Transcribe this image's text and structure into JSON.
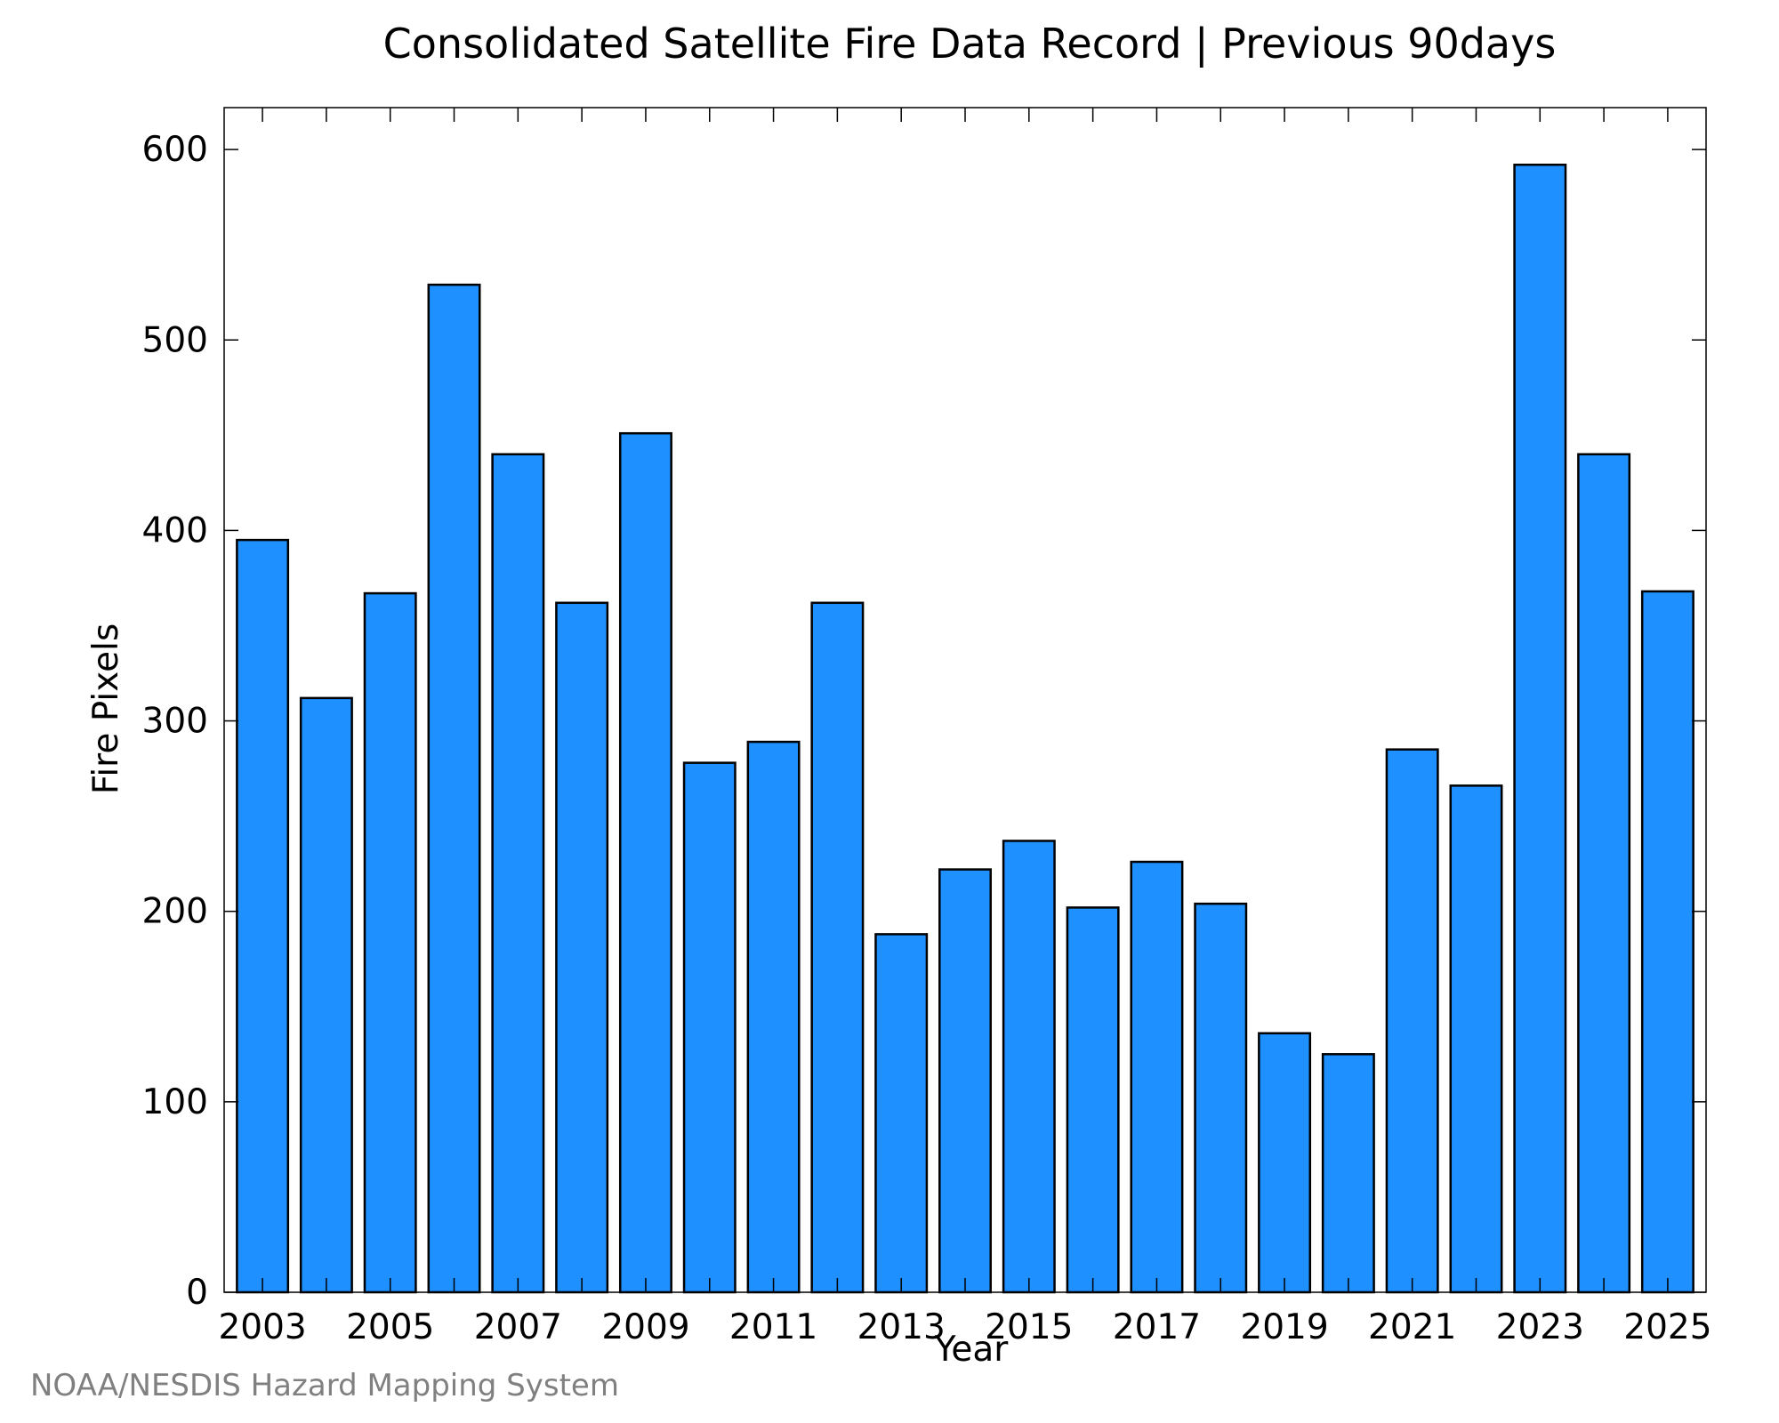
{
  "chart_data": {
    "type": "bar",
    "title": "Consolidated Satellite Fire Data Record | Previous 90days",
    "xlabel": "Year",
    "ylabel": "Fire Pixels",
    "categories": [
      "2003",
      "2004",
      "2005",
      "2006",
      "2007",
      "2008",
      "2009",
      "2010",
      "2011",
      "2012",
      "2013",
      "2014",
      "2015",
      "2016",
      "2017",
      "2018",
      "2019",
      "2020",
      "2021",
      "2022",
      "2023",
      "2024",
      "2025"
    ],
    "values": [
      395,
      312,
      367,
      529,
      440,
      362,
      451,
      278,
      289,
      362,
      188,
      222,
      237,
      202,
      226,
      204,
      136,
      125,
      285,
      266,
      592,
      440,
      368
    ],
    "x_tick_labels": [
      "2003",
      "2005",
      "2007",
      "2009",
      "2011",
      "2013",
      "2015",
      "2017",
      "2019",
      "2021",
      "2023",
      "2025"
    ],
    "y_ticks": [
      0,
      100,
      200,
      300,
      400,
      500,
      600
    ],
    "ylim": [
      0,
      622
    ],
    "grid": false,
    "colors": {
      "bar_fill": "#1e90ff",
      "bar_edge": "#000000"
    }
  },
  "footer": {
    "credit": "NOAA/NESDIS Hazard Mapping System"
  }
}
